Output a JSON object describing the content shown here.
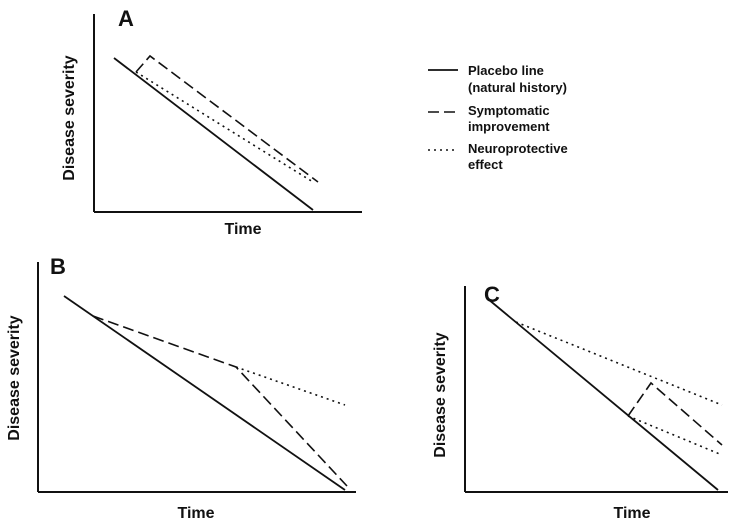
{
  "legend": {
    "placebo": [
      "Placebo line",
      "(natural history)"
    ],
    "symptomatic": [
      "Symptomatic",
      "improvement"
    ],
    "neuroprotective": [
      "Neuroprotective",
      "effect"
    ]
  },
  "panels": [
    {
      "id": "A",
      "label": "A",
      "xlabel": "Time",
      "ylabel": "Disease severity"
    },
    {
      "id": "B",
      "label": "B",
      "xlabel": "Time",
      "ylabel": "Disease severity"
    },
    {
      "id": "C",
      "label": "C",
      "xlabel": "Time",
      "ylabel": "Disease severity"
    }
  ],
  "colors": {
    "line": "#111111",
    "background": "#ffffff"
  }
}
